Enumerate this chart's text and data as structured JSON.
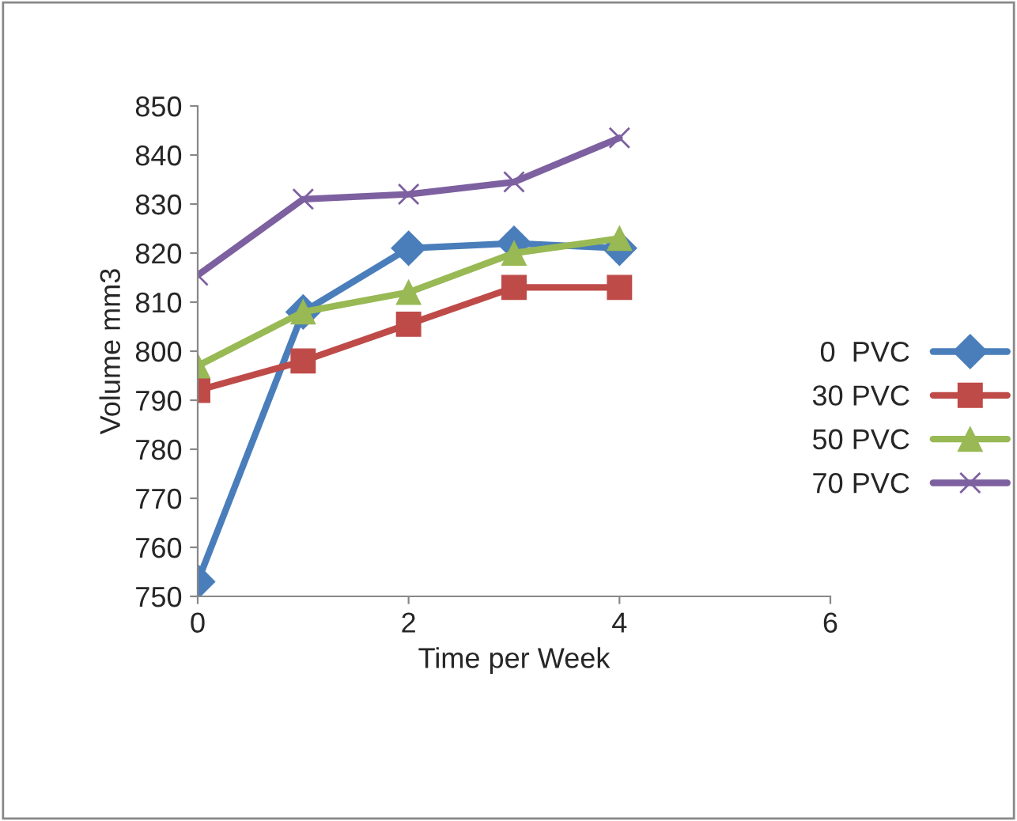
{
  "chart_data": {
    "type": "line",
    "xlabel": "Time per Week",
    "ylabel": "Volume mm3",
    "x": [
      0,
      1,
      2,
      3,
      4
    ],
    "series": [
      {
        "name": "0  PVC",
        "color": "#4a7ebb",
        "marker": "diamond",
        "values": [
          753,
          808,
          821,
          822,
          821
        ]
      },
      {
        "name": "30 PVC",
        "color": "#be4b48",
        "marker": "square",
        "values": [
          792,
          798,
          805.5,
          813,
          813
        ]
      },
      {
        "name": "50 PVC",
        "color": "#98b954",
        "marker": "triangle",
        "values": [
          797,
          808,
          812,
          820,
          823
        ]
      },
      {
        "name": "70 PVC",
        "color": "#7d60a0",
        "marker": "cross",
        "values": [
          815.5,
          831,
          832,
          834.5,
          843.5
        ]
      }
    ],
    "xlim": [
      0,
      6
    ],
    "xticks": [
      0,
      2,
      4,
      6
    ],
    "ylim": [
      750,
      850
    ],
    "yticks": [
      750,
      760,
      770,
      780,
      790,
      800,
      810,
      820,
      830,
      840,
      850
    ],
    "grid": false,
    "legend": "right",
    "line_style": "solid"
  }
}
